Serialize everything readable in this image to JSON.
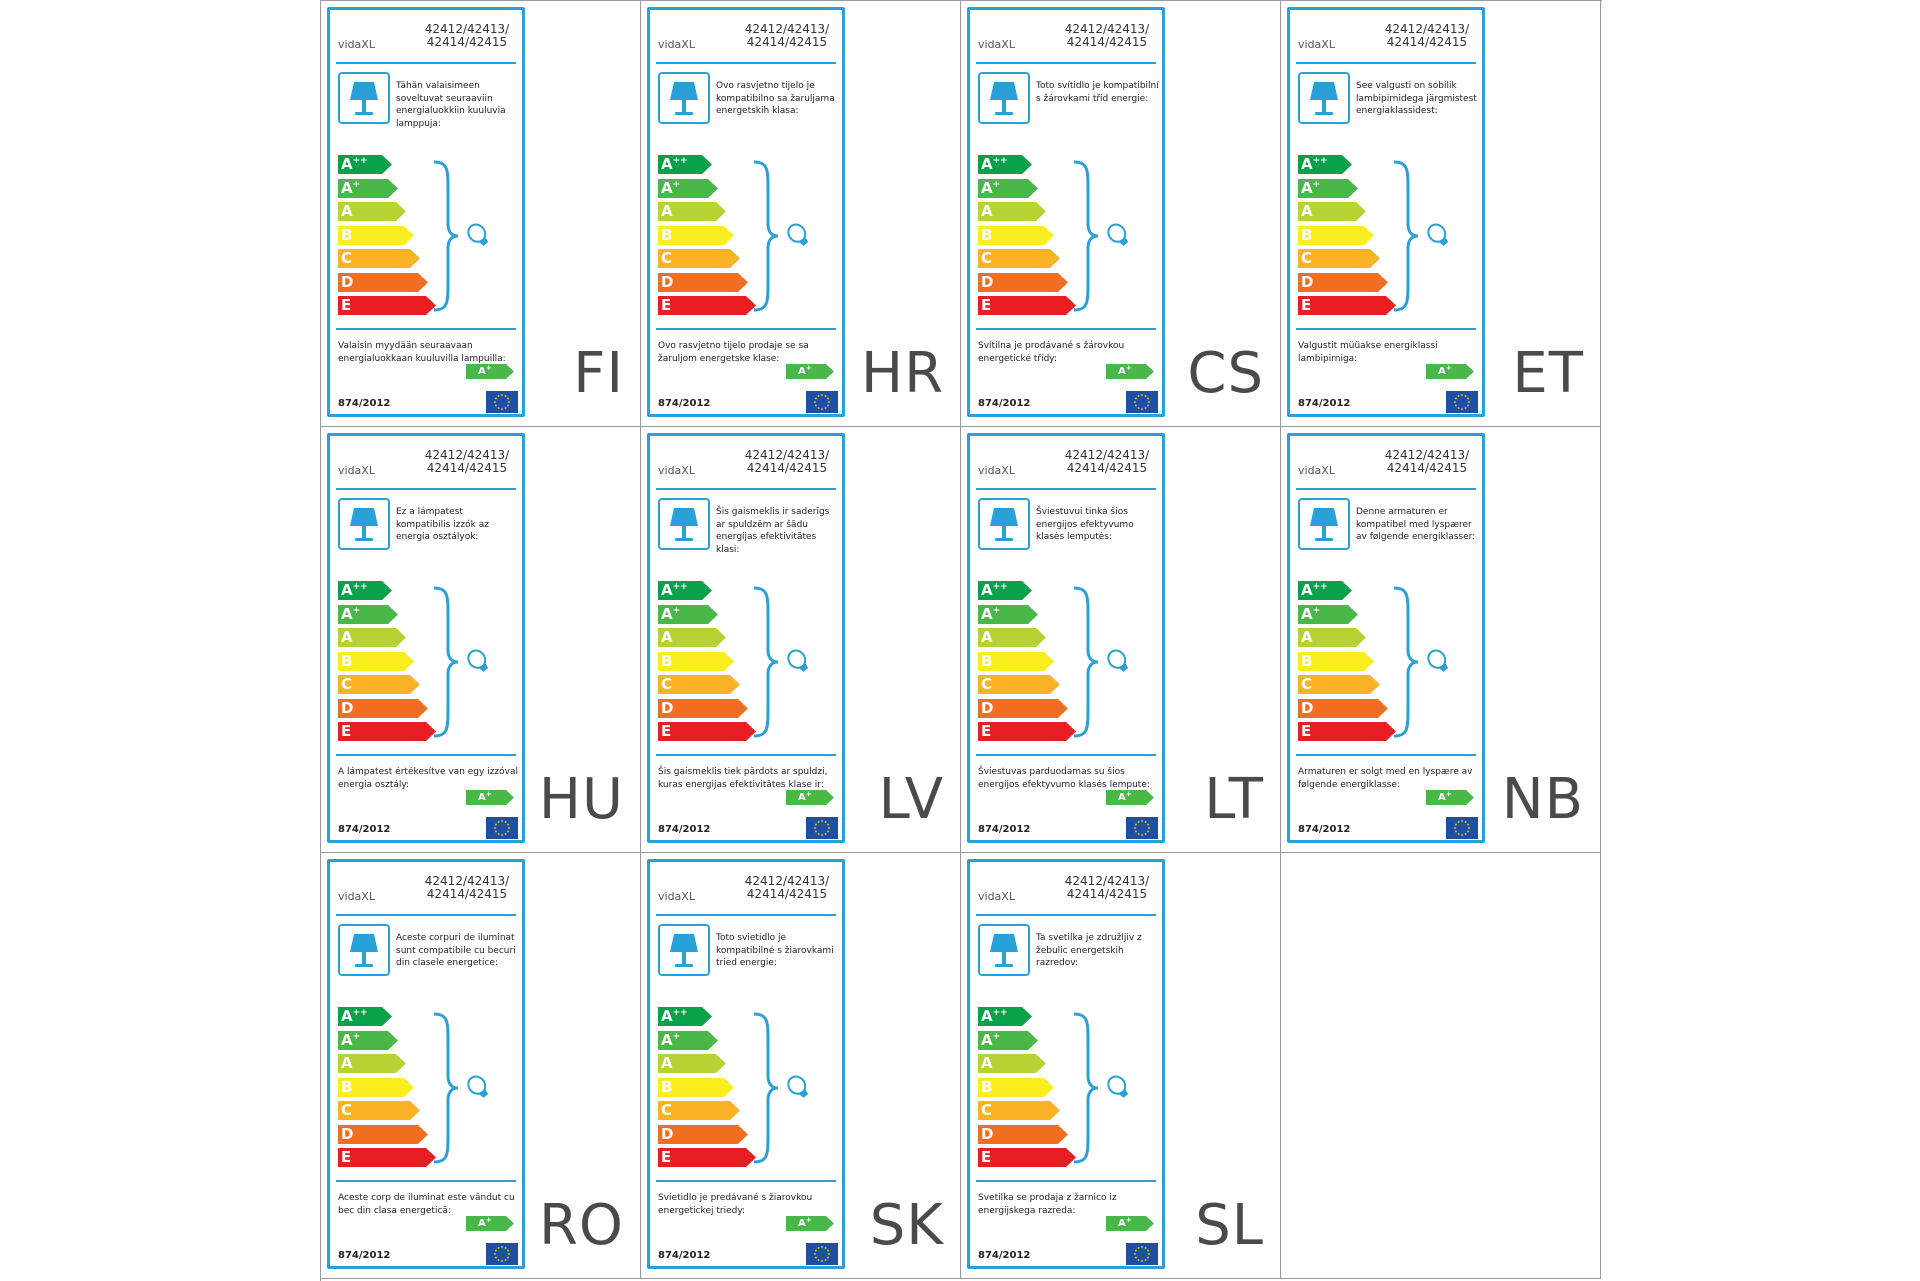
{
  "brand": "vidaXL",
  "models": "42412/42413/\n42414/42415",
  "regulation": "874/2012",
  "colors": {
    "frame": "#2aa0d8",
    "app": "#0aa14b",
    "ap": "#4ab848",
    "a": "#b6d334",
    "b": "#fced1f",
    "c": "#fbb224",
    "d": "#f26f22",
    "e": "#e81e25"
  },
  "classes": [
    {
      "letter": "A",
      "sup": "++",
      "color_key": "app"
    },
    {
      "letter": "A",
      "sup": "+",
      "color_key": "ap"
    },
    {
      "letter": "A",
      "sup": "",
      "color_key": "a"
    },
    {
      "letter": "B",
      "sup": "",
      "color_key": "b"
    },
    {
      "letter": "C",
      "sup": "",
      "color_key": "c"
    },
    {
      "letter": "D",
      "sup": "",
      "color_key": "d"
    },
    {
      "letter": "E",
      "sup": "",
      "color_key": "e"
    }
  ],
  "sold_class": {
    "letter": "A",
    "sup": "+"
  },
  "icons": [
    "lamp-icon",
    "bulb-icon",
    "brace-icon",
    "eu-flag-icon"
  ],
  "labels": [
    {
      "lang": "FI",
      "intro": "Tähän valaisimeen soveltuvat seuraaviin energialuokkiin kuuluvia lamppuja:",
      "outro": "Valaisin myydään seuraavaan energialuokkaan kuuluvilla lampuilla:"
    },
    {
      "lang": "HR",
      "intro": "Ovo rasvjetno tijelo je kompatibilno sa žaruljama energetskih klasa:",
      "outro": "Ovo rasvjetno tijelo prodaje se sa žaruljom energetske klase:"
    },
    {
      "lang": "CS",
      "intro": "Toto svítidlo je kompatibilní s žárovkami tříd energie:",
      "outro": "Svítilna je prodávané s žárovkou energetické třídy:"
    },
    {
      "lang": "ET",
      "intro": "See valgusti on sobilik lambipirnidega järgmistest energiaklassidest:",
      "outro": "Valgustit müüakse energiklassi lambipirniga:"
    },
    {
      "lang": "HU",
      "intro": "Ez a lámpatest kompatibilis izzók az energia osztályok:",
      "outro": "A lámpatest értékesítve van egy izzóval energia osztály:"
    },
    {
      "lang": "LV",
      "intro": "Šis gaismeklis ir saderīgs ar spuldzēm ar šādu energijas efektivitātes klasi:",
      "outro": "Šis gaismeklis tiek pārdots ar spuldzi, kuras energijas efektivitātes klase ir:"
    },
    {
      "lang": "LT",
      "intro": "Šviestuvui tinka šios energijos efektyvumo klasės lemputės:",
      "outro": "Šviestuvas parduodamas su šios energijos efektyvumo klasės lempute:"
    },
    {
      "lang": "NB",
      "intro": "Denne armaturen er kompatibel med lyspærer av følgende energiklasser:",
      "outro": "Armaturen er solgt med en lyspære av følgende energiklasse:"
    },
    {
      "lang": "RO",
      "intro": "Aceste corpuri de iluminat sunt compatibile cu becuri din clasele energetice:",
      "outro": "Aceste corp de iluminat este vândut cu bec din clasa energetică:"
    },
    {
      "lang": "SK",
      "intro": "Toto svietidlo je kompatibilné s žiarovkami tried energie:",
      "outro": "Svietidlo je predávané s žiarovkou energetickej triedy:"
    },
    {
      "lang": "SL",
      "intro": "Ta svetilka je združljiv z žebulic energetskih razredov:",
      "outro": "Svetilka se prodaja z žarnico iz energijskega razreda:"
    }
  ]
}
